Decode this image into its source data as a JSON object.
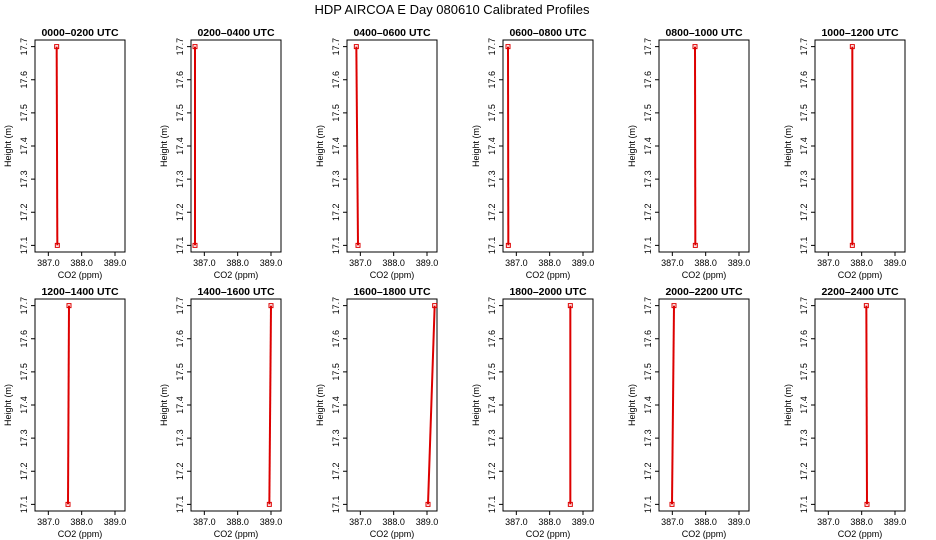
{
  "title": "HDP AIRCOA E  Day 080610  Calibrated Profiles",
  "colors": {
    "series": "#dd0000",
    "axis": "#000000"
  },
  "chart_data": [
    {
      "type": "line",
      "title": "0000–0200 UTC",
      "xlabel": "CO2 (ppm)",
      "ylabel": "Height (m)",
      "xlim": [
        386.6,
        389.3
      ],
      "ylim": [
        17.08,
        17.72
      ],
      "xticks": [
        "387.0",
        "388.0",
        "389.0"
      ],
      "yticks": [
        "17.1",
        "17.2",
        "17.3",
        "17.4",
        "17.5",
        "17.6",
        "17.7"
      ],
      "points": [
        {
          "x": 387.25,
          "y": 17.7
        },
        {
          "x": 387.27,
          "y": 17.1
        }
      ]
    },
    {
      "type": "line",
      "title": "0200–0400 UTC",
      "xlabel": "CO2 (ppm)",
      "ylabel": "Height (m)",
      "xlim": [
        386.6,
        389.3
      ],
      "ylim": [
        17.08,
        17.72
      ],
      "xticks": [
        "387.0",
        "388.0",
        "389.0"
      ],
      "yticks": [
        "17.1",
        "17.2",
        "17.3",
        "17.4",
        "17.5",
        "17.6",
        "17.7"
      ],
      "points": [
        {
          "x": 386.72,
          "y": 17.7
        },
        {
          "x": 386.72,
          "y": 17.1
        }
      ]
    },
    {
      "type": "line",
      "title": "0400–0600 UTC",
      "xlabel": "CO2 (ppm)",
      "ylabel": "Height (m)",
      "xlim": [
        386.6,
        389.3
      ],
      "ylim": [
        17.08,
        17.72
      ],
      "xticks": [
        "387.0",
        "388.0",
        "389.0"
      ],
      "yticks": [
        "17.1",
        "17.2",
        "17.3",
        "17.4",
        "17.5",
        "17.6",
        "17.7"
      ],
      "points": [
        {
          "x": 386.88,
          "y": 17.7
        },
        {
          "x": 386.93,
          "y": 17.1
        }
      ]
    },
    {
      "type": "line",
      "title": "0600–0800 UTC",
      "xlabel": "CO2 (ppm)",
      "ylabel": "Height (m)",
      "xlim": [
        386.6,
        389.3
      ],
      "ylim": [
        17.08,
        17.72
      ],
      "xticks": [
        "387.0",
        "388.0",
        "389.0"
      ],
      "yticks": [
        "17.1",
        "17.2",
        "17.3",
        "17.4",
        "17.5",
        "17.6",
        "17.7"
      ],
      "points": [
        {
          "x": 386.75,
          "y": 17.7
        },
        {
          "x": 386.76,
          "y": 17.1
        }
      ]
    },
    {
      "type": "line",
      "title": "0800–1000 UTC",
      "xlabel": "CO2 (ppm)",
      "ylabel": "Height (m)",
      "xlim": [
        386.6,
        389.3
      ],
      "ylim": [
        17.08,
        17.72
      ],
      "xticks": [
        "387.0",
        "388.0",
        "389.0"
      ],
      "yticks": [
        "17.1",
        "17.2",
        "17.3",
        "17.4",
        "17.5",
        "17.6",
        "17.7"
      ],
      "points": [
        {
          "x": 387.68,
          "y": 17.7
        },
        {
          "x": 387.69,
          "y": 17.1
        }
      ]
    },
    {
      "type": "line",
      "title": "1000–1200 UTC",
      "xlabel": "CO2 (ppm)",
      "ylabel": "Height (m)",
      "xlim": [
        386.6,
        389.3
      ],
      "ylim": [
        17.08,
        17.72
      ],
      "xticks": [
        "387.0",
        "388.0",
        "389.0"
      ],
      "yticks": [
        "17.1",
        "17.2",
        "17.3",
        "17.4",
        "17.5",
        "17.6",
        "17.7"
      ],
      "points": [
        {
          "x": 387.72,
          "y": 17.7
        },
        {
          "x": 387.72,
          "y": 17.1
        }
      ]
    },
    {
      "type": "line",
      "title": "1200–1400 UTC",
      "xlabel": "CO2 (ppm)",
      "ylabel": "Height (m)",
      "xlim": [
        386.6,
        389.3
      ],
      "ylim": [
        17.08,
        17.72
      ],
      "xticks": [
        "387.0",
        "388.0",
        "389.0"
      ],
      "yticks": [
        "17.1",
        "17.2",
        "17.3",
        "17.4",
        "17.5",
        "17.6",
        "17.7"
      ],
      "points": [
        {
          "x": 387.62,
          "y": 17.7
        },
        {
          "x": 387.59,
          "y": 17.1
        }
      ]
    },
    {
      "type": "line",
      "title": "1400–1600 UTC",
      "xlabel": "CO2 (ppm)",
      "ylabel": "Height (m)",
      "xlim": [
        386.6,
        389.3
      ],
      "ylim": [
        17.08,
        17.72
      ],
      "xticks": [
        "387.0",
        "388.0",
        "389.0"
      ],
      "yticks": [
        "17.1",
        "17.2",
        "17.3",
        "17.4",
        "17.5",
        "17.6",
        "17.7"
      ],
      "points": [
        {
          "x": 389.0,
          "y": 17.7
        },
        {
          "x": 388.95,
          "y": 17.1
        }
      ]
    },
    {
      "type": "line",
      "title": "1600–1800 UTC",
      "xlabel": "CO2 (ppm)",
      "ylabel": "Height (m)",
      "xlim": [
        386.6,
        389.3
      ],
      "ylim": [
        17.08,
        17.72
      ],
      "xticks": [
        "387.0",
        "388.0",
        "389.0"
      ],
      "yticks": [
        "17.1",
        "17.2",
        "17.3",
        "17.4",
        "17.5",
        "17.6",
        "17.7"
      ],
      "points": [
        {
          "x": 389.23,
          "y": 17.7
        },
        {
          "x": 389.03,
          "y": 17.1
        }
      ]
    },
    {
      "type": "line",
      "title": "1800–2000 UTC",
      "xlabel": "CO2 (ppm)",
      "ylabel": "Height (m)",
      "xlim": [
        386.6,
        389.3
      ],
      "ylim": [
        17.08,
        17.72
      ],
      "xticks": [
        "387.0",
        "388.0",
        "389.0"
      ],
      "yticks": [
        "17.1",
        "17.2",
        "17.3",
        "17.4",
        "17.5",
        "17.6",
        "17.7"
      ],
      "points": [
        {
          "x": 388.62,
          "y": 17.7
        },
        {
          "x": 388.62,
          "y": 17.1
        }
      ]
    },
    {
      "type": "line",
      "title": "2000–2200 UTC",
      "xlabel": "CO2 (ppm)",
      "ylabel": "Height (m)",
      "xlim": [
        386.6,
        389.3
      ],
      "ylim": [
        17.08,
        17.72
      ],
      "xticks": [
        "387.0",
        "388.0",
        "389.0"
      ],
      "yticks": [
        "17.1",
        "17.2",
        "17.3",
        "17.4",
        "17.5",
        "17.6",
        "17.7"
      ],
      "points": [
        {
          "x": 387.05,
          "y": 17.7
        },
        {
          "x": 386.99,
          "y": 17.1
        }
      ]
    },
    {
      "type": "line",
      "title": "2200–2400 UTC",
      "xlabel": "CO2 (ppm)",
      "ylabel": "Height (m)",
      "xlim": [
        386.6,
        389.3
      ],
      "ylim": [
        17.08,
        17.72
      ],
      "xticks": [
        "387.0",
        "388.0",
        "389.0"
      ],
      "yticks": [
        "17.1",
        "17.2",
        "17.3",
        "17.4",
        "17.5",
        "17.6",
        "17.7"
      ],
      "points": [
        {
          "x": 388.14,
          "y": 17.7
        },
        {
          "x": 388.16,
          "y": 17.1
        }
      ]
    }
  ]
}
